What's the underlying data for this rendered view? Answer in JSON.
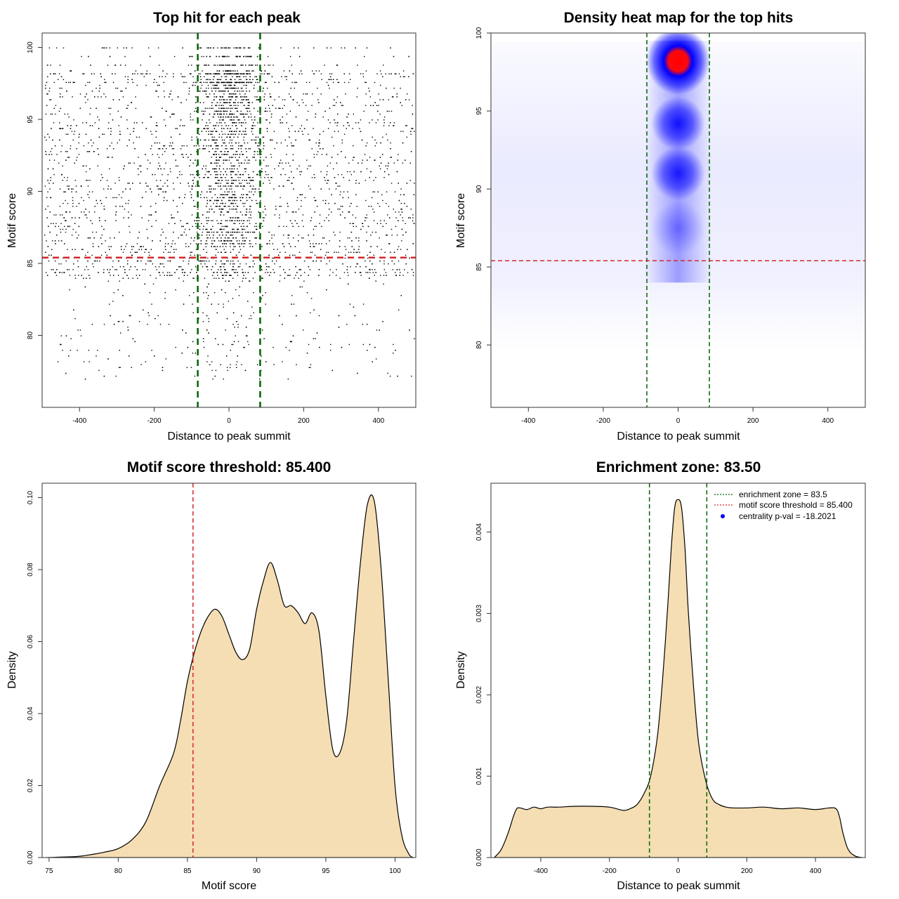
{
  "chart_data": [
    {
      "type": "scatter",
      "title": "Top hit for each peak",
      "xlabel": "Distance to peak summit",
      "ylabel": "Motif score",
      "xlim": [
        -500,
        500
      ],
      "ylim": [
        75,
        101
      ],
      "xticks": [
        "-400",
        "-200",
        "0",
        "200",
        "400"
      ],
      "yticks": [
        "80",
        "85",
        "90",
        "95",
        "100"
      ],
      "reference_lines": {
        "vertical": [
          -83.5,
          83.5
        ],
        "horizontal": [
          85.4
        ]
      },
      "points_description": "dense cloud of points, concentrated near 0 and at high motif scores",
      "colors": {
        "points": "#000000",
        "vertical_lines": "#006400",
        "horizontal_line": "#d62728"
      }
    },
    {
      "type": "heatmap",
      "title": "Density heat map for the top hits",
      "xlabel": "Distance to peak summit",
      "ylabel": "Motif score",
      "xlim": [
        -500,
        500
      ],
      "ylim": [
        76,
        100
      ],
      "xticks": [
        "-400",
        "-200",
        "0",
        "200",
        "400"
      ],
      "yticks": [
        "80",
        "85",
        "90",
        "95",
        "100"
      ],
      "reference_lines": {
        "vertical": [
          -83.5,
          83.5
        ],
        "horizontal": [
          85.4
        ]
      },
      "hotspots": [
        {
          "x": 0,
          "y": 98.2,
          "intensity": 1.0
        },
        {
          "x": 0,
          "y": 94.2,
          "intensity": 0.55
        },
        {
          "x": 0,
          "y": 91.0,
          "intensity": 0.5
        },
        {
          "x": 0,
          "y": 87.5,
          "intensity": 0.25
        }
      ],
      "colors": {
        "low": "#ffffff",
        "mid": "#0000ff",
        "high": "#ff0000",
        "vertical_lines": "#006400",
        "horizontal_line": "#d62728"
      }
    },
    {
      "type": "area",
      "title": "Motif score threshold: 85.400",
      "xlabel": "Motif score",
      "ylabel": "Density",
      "xlim": [
        74.5,
        101.5
      ],
      "ylim": [
        0,
        0.104
      ],
      "xticks": [
        "75",
        "80",
        "85",
        "90",
        "95",
        "100"
      ],
      "yticks": [
        "0.00",
        "0.02",
        "0.04",
        "0.06",
        "0.08",
        "0.10"
      ],
      "reference_lines": {
        "vertical": [
          85.4
        ]
      },
      "series": [
        {
          "x": [
            74.8,
            77,
            78,
            79,
            80,
            81,
            82,
            83,
            84,
            84.5,
            85,
            85.5,
            86,
            86.5,
            87,
            87.5,
            88,
            88.5,
            89,
            89.5,
            90,
            90.5,
            91,
            91.5,
            92,
            92.5,
            93,
            93.5,
            94,
            94.5,
            95,
            95.5,
            96,
            96.5,
            97,
            97.5,
            98,
            98.5,
            99,
            99.5,
            100,
            100.5,
            101,
            101.3
          ],
          "y": [
            0.0,
            0.0003,
            0.0008,
            0.0015,
            0.0025,
            0.005,
            0.01,
            0.02,
            0.029,
            0.038,
            0.049,
            0.057,
            0.063,
            0.067,
            0.069,
            0.067,
            0.062,
            0.057,
            0.055,
            0.058,
            0.069,
            0.077,
            0.082,
            0.077,
            0.07,
            0.07,
            0.068,
            0.065,
            0.068,
            0.063,
            0.045,
            0.03,
            0.029,
            0.038,
            0.06,
            0.082,
            0.098,
            0.099,
            0.08,
            0.05,
            0.02,
            0.006,
            0.001,
            0.0
          ]
        }
      ],
      "colors": {
        "fill": "#f5deb3",
        "line": "#000000",
        "threshold_line": "#d62728"
      }
    },
    {
      "type": "area",
      "title": "Enrichment zone: 83.50",
      "xlabel": "Distance to peak summit",
      "ylabel": "Density",
      "xlim": [
        -545,
        545
      ],
      "ylim": [
        0,
        0.0046
      ],
      "xticks": [
        "-400",
        "-200",
        "0",
        "200",
        "400"
      ],
      "yticks": [
        "0.000",
        "0.001",
        "0.002",
        "0.003",
        "0.004"
      ],
      "reference_lines": {
        "vertical": [
          -83.5,
          83.5
        ]
      },
      "legend": {
        "position": "top-right",
        "entries": [
          {
            "label": "enrichment zone = 83.5",
            "color": "#006400",
            "style": "dotted-line"
          },
          {
            "label": "motif score threshold = 85.400",
            "color": "#d62728",
            "style": "dotted-line"
          },
          {
            "label": "centrality p-val = -18.2021",
            "color": "#0000ff",
            "style": "point"
          }
        ]
      },
      "series": [
        {
          "x": [
            -535,
            -515,
            -495,
            -480,
            -470,
            -460,
            -440,
            -420,
            -400,
            -380,
            -350,
            -300,
            -250,
            -200,
            -160,
            -140,
            -120,
            -100,
            -80,
            -60,
            -45,
            -30,
            -20,
            -10,
            0,
            10,
            20,
            30,
            45,
            60,
            80,
            100,
            120,
            140,
            160,
            200,
            250,
            300,
            350,
            400,
            440,
            460,
            470,
            480,
            495,
            515,
            535
          ],
          "y": [
            0.0,
            0.0001,
            0.0003,
            0.0005,
            0.0006,
            0.00061,
            0.00059,
            0.00062,
            0.0006,
            0.00062,
            0.00062,
            0.00063,
            0.00063,
            0.00062,
            0.00058,
            0.0006,
            0.00065,
            0.00078,
            0.001,
            0.0015,
            0.0022,
            0.0031,
            0.0038,
            0.0043,
            0.0044,
            0.0043,
            0.0038,
            0.003,
            0.0021,
            0.0014,
            0.00095,
            0.00072,
            0.00065,
            0.00062,
            0.00061,
            0.00061,
            0.00062,
            0.0006,
            0.00061,
            0.00059,
            0.00061,
            0.0006,
            0.0005,
            0.0003,
            0.0001,
            2e-05,
            0.0
          ]
        }
      ],
      "colors": {
        "fill": "#f5deb3",
        "line": "#000000",
        "zone_lines": "#006400"
      }
    }
  ]
}
